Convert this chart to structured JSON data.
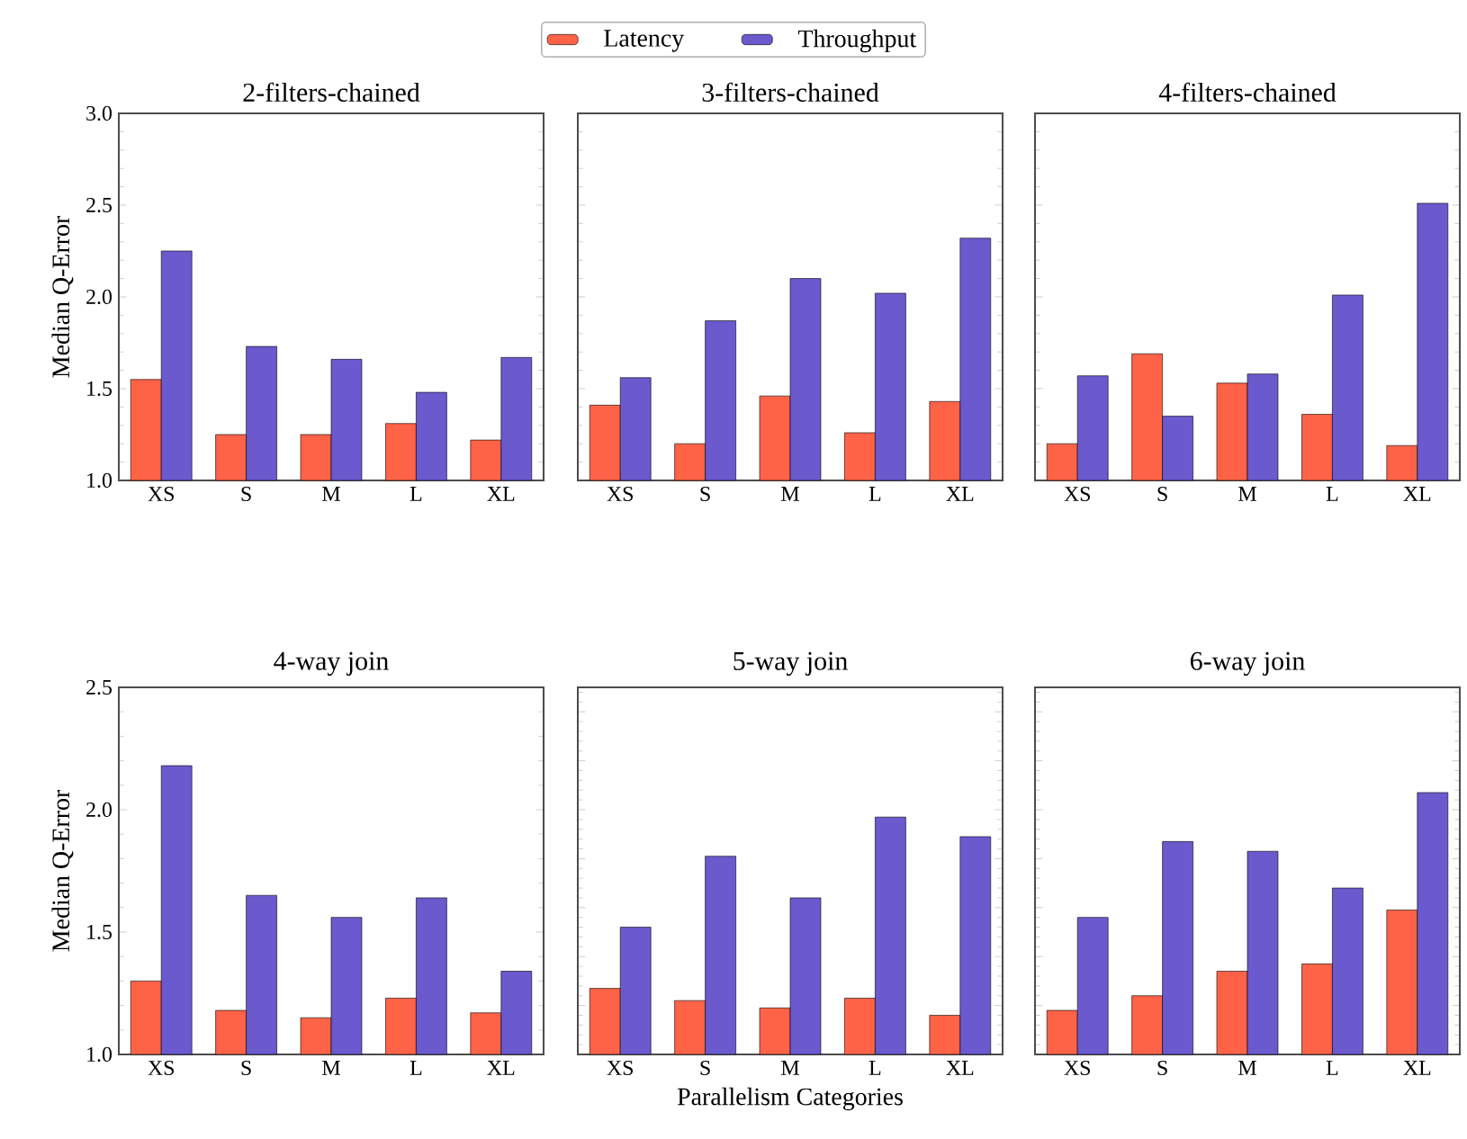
{
  "chart_data": [
    {
      "type": "bar",
      "title": "2-filters-chained",
      "ylabel": "Median Q-Error",
      "categories": [
        "XS",
        "S",
        "M",
        "L",
        "XL"
      ],
      "legend": "top",
      "ylim": [
        1.0,
        3.0
      ],
      "yticks": [
        {
          "value": 1.0,
          "label": "1.0"
        },
        {
          "value": 1.5,
          "label": "1.5"
        },
        {
          "value": 2.0,
          "label": "2.0"
        },
        {
          "value": 2.5,
          "label": "2.5"
        },
        {
          "value": 3.0,
          "label": "3.0"
        }
      ],
      "series": [
        {
          "name": "Latency",
          "color": "#ff6347",
          "values": [
            1.55,
            1.25,
            1.25,
            1.31,
            1.22
          ]
        },
        {
          "name": "Throughput",
          "color": "#6a5acd",
          "values": [
            2.25,
            1.73,
            1.66,
            1.48,
            1.67
          ]
        }
      ]
    },
    {
      "type": "bar",
      "title": "3-filters-chained",
      "categories": [
        "XS",
        "S",
        "M",
        "L",
        "XL"
      ],
      "tick_labels": "x",
      "ylim": [
        1.0,
        3.0
      ],
      "series": [
        {
          "color": "#ff6347",
          "values": [
            1.41,
            1.2,
            1.46,
            1.26,
            1.43
          ]
        },
        {
          "color": "#6a5acd",
          "values": [
            1.56,
            1.87,
            2.1,
            2.02,
            2.32
          ]
        }
      ]
    },
    {
      "type": "bar",
      "title": "4-filters-chained",
      "categories": [
        "XS",
        "S",
        "M",
        "L",
        "XL"
      ],
      "tick_labels": "x",
      "ylim": [
        1.0,
        3.0
      ],
      "series": [
        {
          "color": "#ff6347",
          "values": [
            1.2,
            1.69,
            1.53,
            1.36,
            1.19
          ]
        },
        {
          "color": "#6a5acd",
          "values": [
            1.57,
            1.35,
            1.58,
            2.01,
            2.51
          ]
        }
      ]
    },
    {
      "type": "bar",
      "title": "4-way join",
      "ylabel": "Median Q-Error",
      "categories": [
        "XS",
        "S",
        "M",
        "L",
        "XL"
      ],
      "ylim": [
        1.0,
        2.5
      ],
      "yticks": [
        {
          "value": 1.0,
          "label": "1.0"
        },
        {
          "value": 1.5,
          "label": "1.5"
        },
        {
          "value": 2.0,
          "label": "2.0"
        },
        {
          "value": 2.5,
          "label": "2.5"
        }
      ],
      "series": [
        {
          "color": "#ff6347",
          "values": [
            1.3,
            1.18,
            1.15,
            1.23,
            1.17
          ]
        },
        {
          "color": "#6a5acd",
          "values": [
            2.18,
            1.65,
            1.56,
            1.64,
            1.34
          ]
        }
      ]
    },
    {
      "type": "bar",
      "title": "5-way join",
      "xlabel": "Parallelism Categories",
      "categories": [
        "XS",
        "S",
        "M",
        "L",
        "XL"
      ],
      "tick_labels": "x",
      "ylim": [
        1.0,
        2.5
      ],
      "series": [
        {
          "color": "#ff6347",
          "values": [
            1.27,
            1.22,
            1.19,
            1.23,
            1.16
          ]
        },
        {
          "color": "#6a5acd",
          "values": [
            1.52,
            1.81,
            1.64,
            1.97,
            1.89
          ]
        }
      ]
    },
    {
      "type": "bar",
      "title": "6-way join",
      "categories": [
        "XS",
        "S",
        "M",
        "L",
        "XL"
      ],
      "tick_labels": "x",
      "ylim": [
        1.0,
        2.5
      ],
      "series": [
        {
          "color": "#ff6347",
          "values": [
            1.18,
            1.24,
            1.34,
            1.37,
            1.59
          ]
        },
        {
          "color": "#6a5acd",
          "values": [
            1.56,
            1.87,
            1.83,
            1.68,
            2.07
          ]
        }
      ]
    }
  ]
}
